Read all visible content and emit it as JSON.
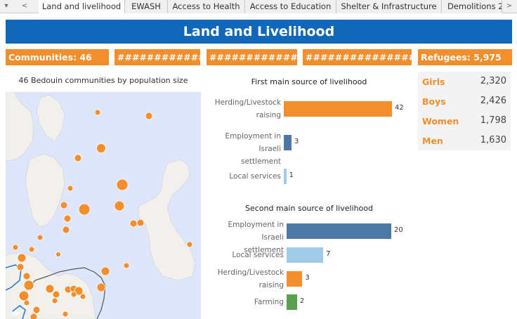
{
  "tabs": {
    "nav_left": "▾",
    "nav_prev": "<",
    "nav_next": ">",
    "items": [
      "Land and livelihood",
      "EWASH",
      "Access to Health",
      "Access to Education",
      "Shelter & Infrastructure",
      "Demolitions 2"
    ]
  },
  "banner": {
    "title": "Land and Livelihood"
  },
  "kpis": {
    "communities": "Communities: 46",
    "hidden1": "############",
    "hidden2": "############",
    "hidden3": "################",
    "refugees": "Refugees: 5,975"
  },
  "map": {
    "title": "46 Bedouin communities by population size"
  },
  "demographics": {
    "rows": [
      {
        "label": "Girls",
        "value": "2,320"
      },
      {
        "label": "Boys",
        "value": "2,426"
      },
      {
        "label": "Women",
        "value": "1,798"
      },
      {
        "label": "Men",
        "value": "1,630"
      }
    ]
  },
  "colors": {
    "orange": "#f28e2b",
    "blue": "#1167b8",
    "dark_blue": "#4e79a7",
    "light_blue": "#a0cbe8",
    "green": "#59a14f",
    "sea": "#dde6fb",
    "land": "#f1f0ec"
  },
  "chart_data": [
    {
      "type": "bar",
      "title": "First main source of livelihood",
      "categories": [
        "Herding/Livestock raising",
        "Employment in Israeli settlement",
        "Local services"
      ],
      "values": [
        42,
        3,
        1
      ],
      "colors": [
        "#f28e2b",
        "#4e79a7",
        "#a0cbe8"
      ],
      "xlabel": "",
      "ylabel": ""
    },
    {
      "type": "bar",
      "title": "Second main source of livelihood",
      "categories": [
        "Employment in Israeli settlement",
        "Local services",
        "Herding/Livestock raising",
        "Farming"
      ],
      "values": [
        20,
        7,
        3,
        2
      ],
      "colors": [
        "#4e79a7",
        "#a0cbe8",
        "#f28e2b",
        "#59a14f"
      ],
      "xlabel": "",
      "ylabel": ""
    }
  ]
}
